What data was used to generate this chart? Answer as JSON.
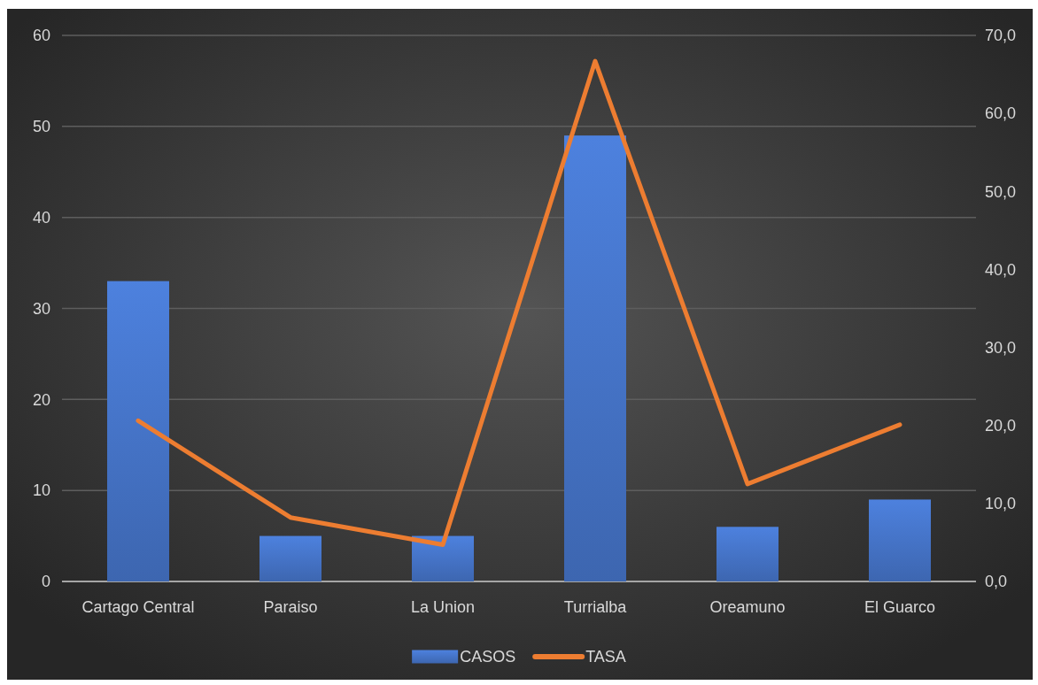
{
  "chart_data": {
    "type": "bar",
    "categories": [
      "Cartago Central",
      "Paraiso",
      "La Union",
      "Turrialba",
      "Oreamuno",
      "El Guarco"
    ],
    "series": [
      {
        "name": "CASOS",
        "color": "#4472c4",
        "values": [
          33,
          5,
          5,
          49,
          6,
          9
        ]
      },
      {
        "name": "TASA",
        "type": "line",
        "axis": "y2",
        "color": "#ed7d31",
        "values": [
          20.6,
          8.2,
          4.7,
          66.7,
          12.5,
          20.1
        ]
      }
    ],
    "ylim": [
      0,
      60
    ],
    "yticks": [
      0,
      10,
      20,
      30,
      40,
      50,
      60
    ],
    "y2lim": [
      0,
      70
    ],
    "y2ticks": [
      {
        "value": 0,
        "label": "0,0"
      },
      {
        "value": 10,
        "label": "10,0"
      },
      {
        "value": 20,
        "label": "20,0"
      },
      {
        "value": 30,
        "label": "30,0"
      },
      {
        "value": 40,
        "label": "40,0"
      },
      {
        "value": 50,
        "label": "50,0"
      },
      {
        "value": 60,
        "label": "60,0"
      },
      {
        "value": 70,
        "label": "70,0"
      }
    ],
    "grid": "y",
    "legend": "bottom"
  }
}
